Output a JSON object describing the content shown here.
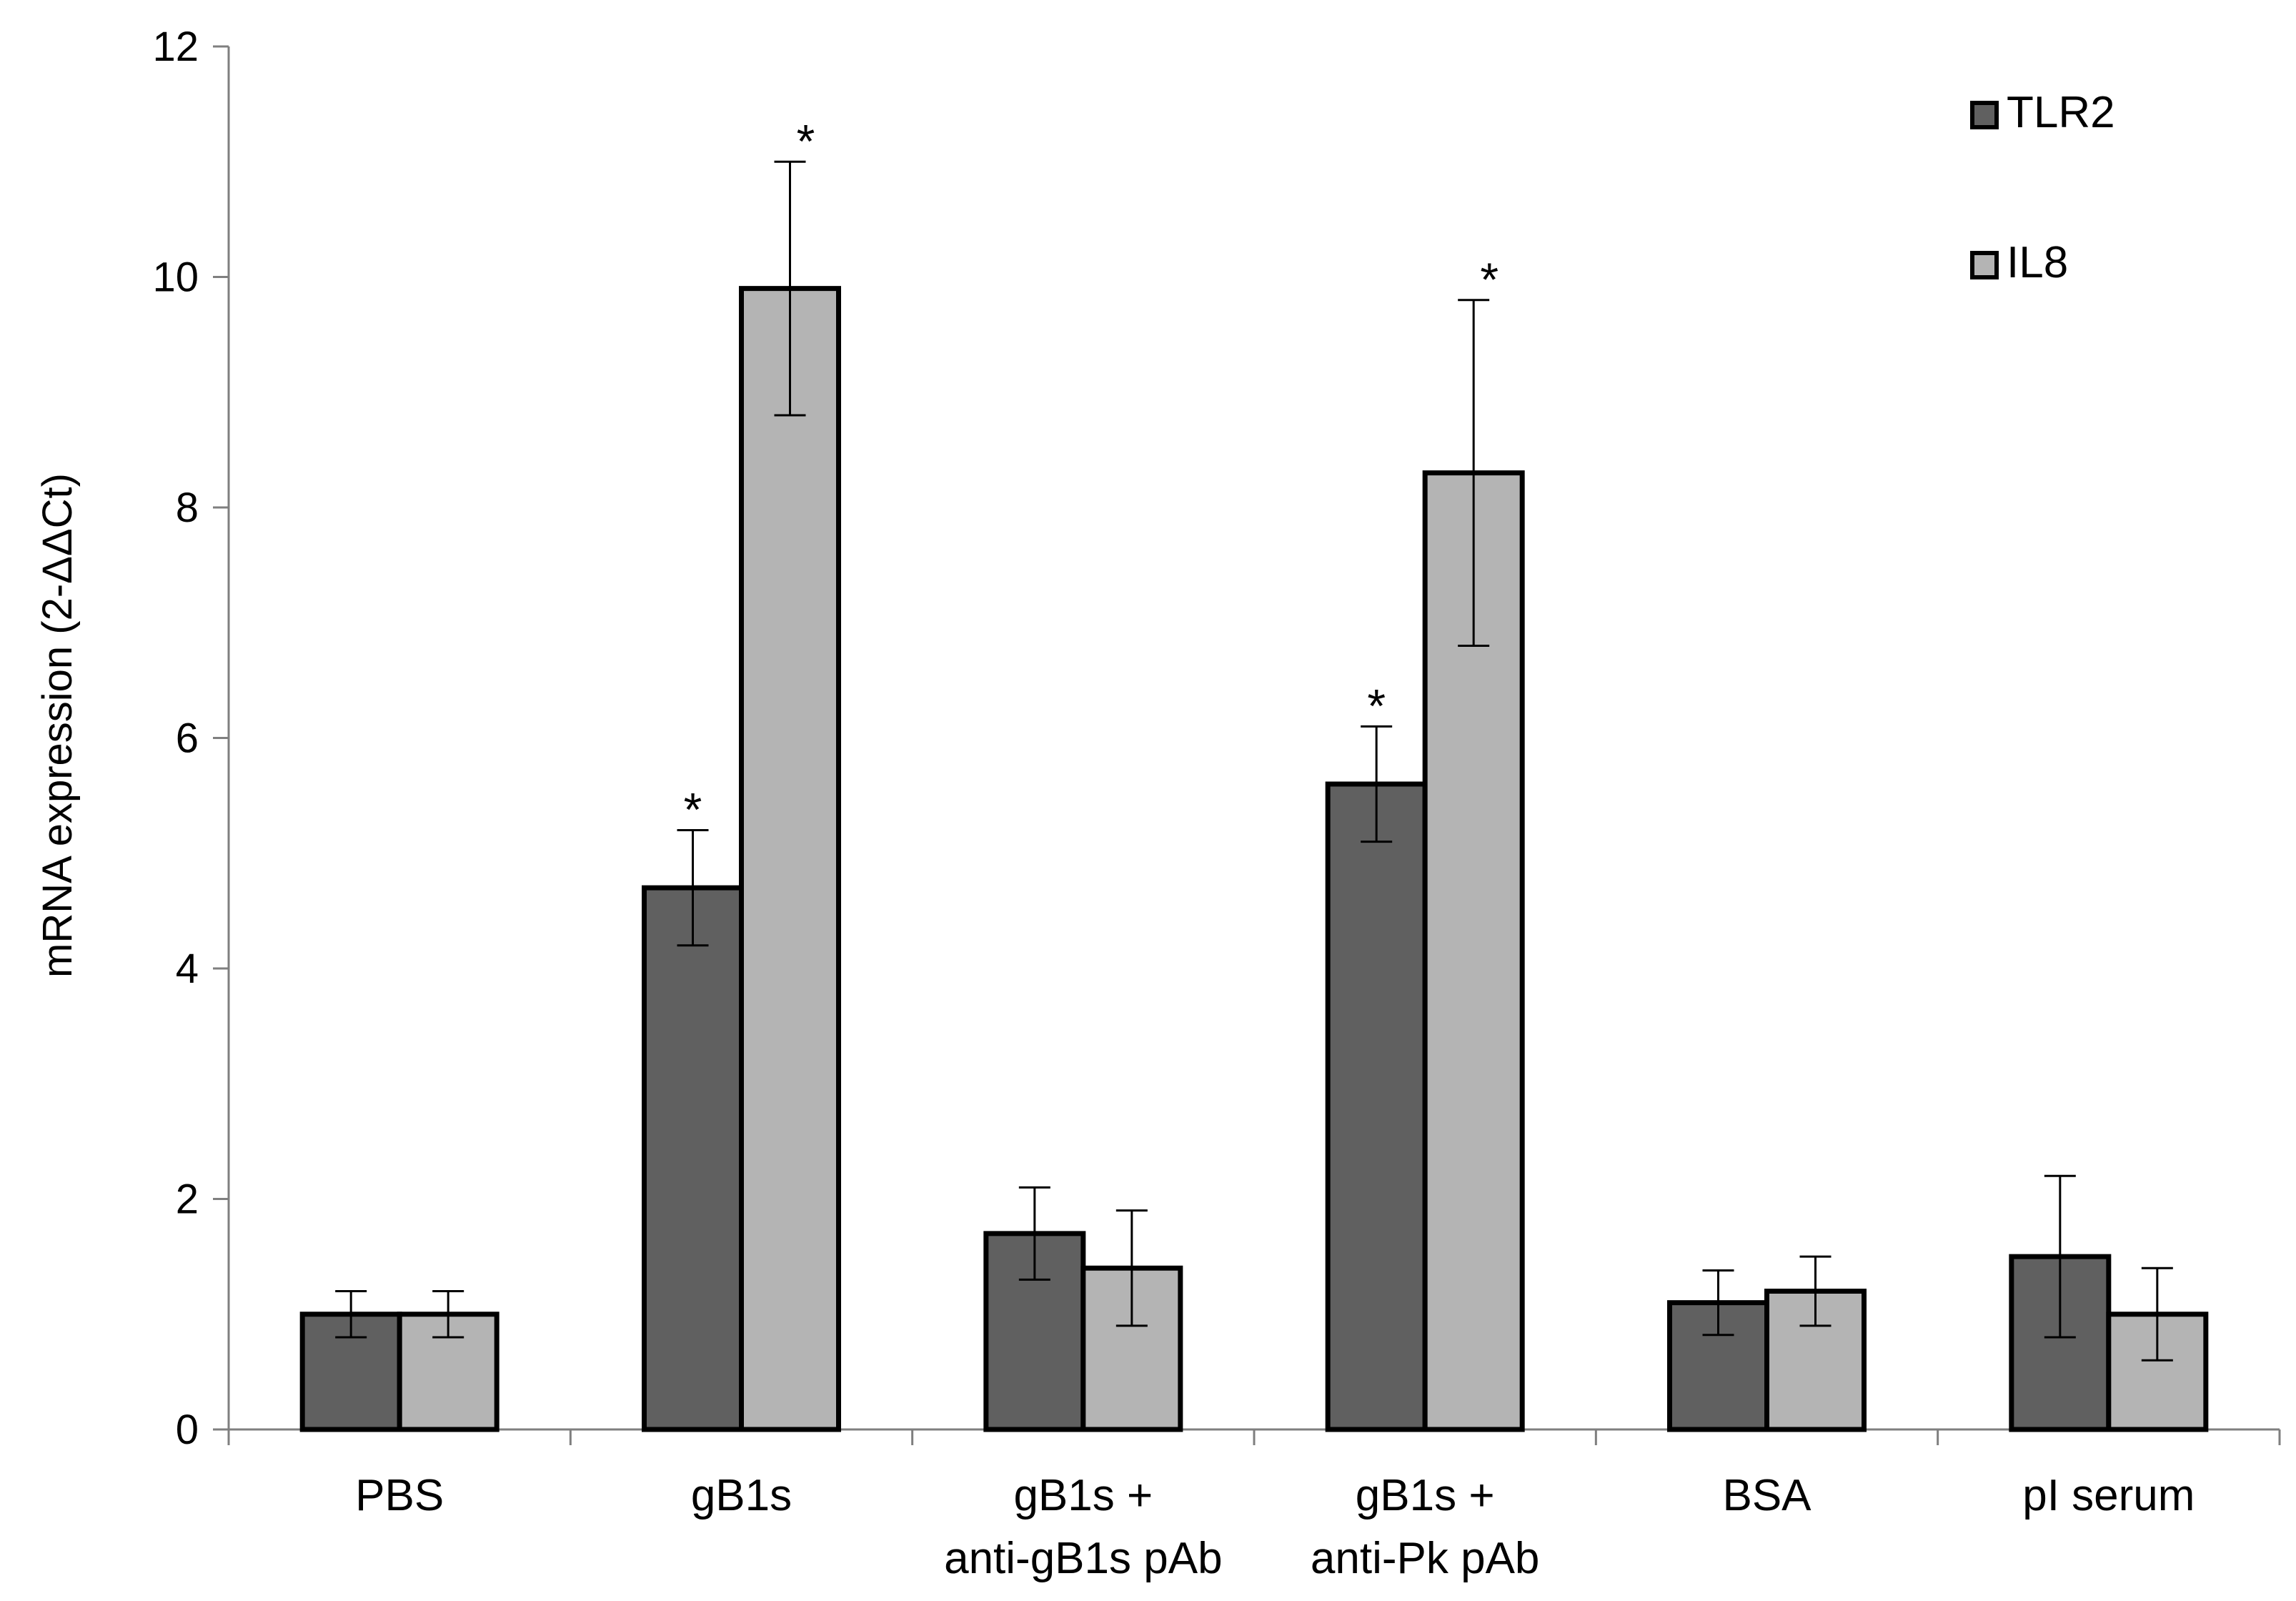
{
  "chart_data": {
    "type": "bar",
    "title": "",
    "xlabel": "",
    "ylabel": "mRNA expression (2-ΔΔCt)",
    "ylim": [
      0,
      12
    ],
    "yticks": [
      0,
      2,
      4,
      6,
      8,
      10,
      12
    ],
    "grid": false,
    "legend_position": "top-right",
    "categories": [
      [
        "PBS"
      ],
      [
        "gB1s"
      ],
      [
        "gB1s +",
        "anti-gB1s pAb"
      ],
      [
        "gB1s +",
        "anti-Pk pAb"
      ],
      [
        "BSA"
      ],
      [
        "pI serum"
      ]
    ],
    "series": [
      {
        "name": "TLR2",
        "color": "#606060",
        "values": [
          1.0,
          4.7,
          1.7,
          5.6,
          1.1,
          1.5
        ],
        "error": [
          0.2,
          0.5,
          0.4,
          0.5,
          0.28,
          0.7
        ],
        "significant": [
          false,
          true,
          false,
          true,
          false,
          false
        ]
      },
      {
        "name": "IL8",
        "color": "#b4b4b4",
        "values": [
          1.0,
          9.9,
          1.4,
          8.3,
          1.2,
          1.0
        ],
        "error": [
          0.2,
          1.1,
          0.5,
          1.5,
          0.3,
          0.4
        ],
        "significant": [
          false,
          true,
          false,
          true,
          false,
          false
        ]
      }
    ],
    "significance_marker": "*"
  }
}
